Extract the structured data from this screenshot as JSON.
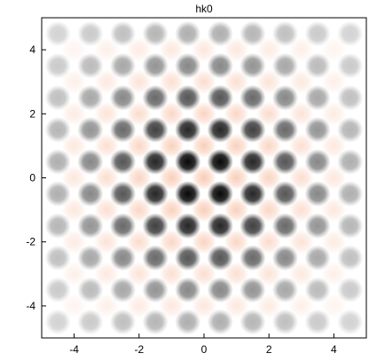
{
  "chart_data": {
    "type": "heatmap",
    "title": "hk0",
    "xlabel": "",
    "ylabel": "",
    "xlim": [
      -5,
      5
    ],
    "ylim": [
      -5,
      5
    ],
    "x_ticks": [
      -4,
      -2,
      0,
      2,
      4
    ],
    "y_ticks": [
      -4,
      -2,
      0,
      2,
      4
    ],
    "x_tick_labels": [
      "-4",
      "-2",
      "0",
      "2",
      "4"
    ],
    "y_tick_labels": [
      "4",
      "2",
      "0",
      "-2",
      "-4"
    ],
    "grid": false,
    "peak_positions_h": [
      -4.5,
      -3.5,
      -2.5,
      -1.5,
      -0.5,
      0.5,
      1.5,
      2.5,
      3.5,
      4.5
    ],
    "peak_positions_k": [
      -4.5,
      -3.5,
      -2.5,
      -1.5,
      -0.5,
      0.5,
      1.5,
      2.5,
      3.5,
      4.5
    ],
    "positive_color": "#000000",
    "negative_color": "#f2a27a",
    "background_color": "#ffffff"
  }
}
